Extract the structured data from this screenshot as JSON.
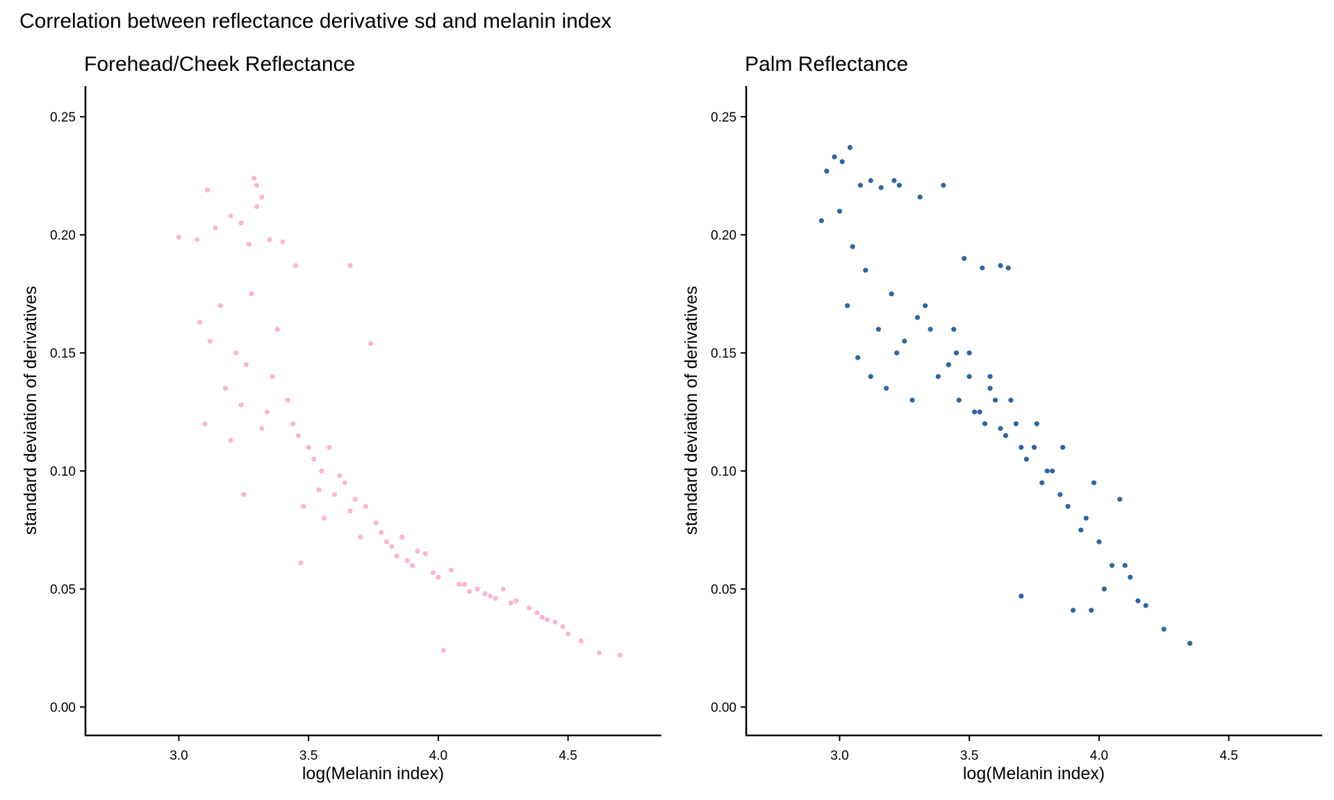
{
  "main_title": "Correlation between reflectance derivative sd and melanin index",
  "chart_data": [
    {
      "type": "scatter",
      "title": "Forehead/Cheek Reflectance",
      "xlabel": "log(Melanin index)",
      "ylabel": "standard deviation of derivatives",
      "xlim": [
        2.64,
        4.86
      ],
      "ylim": [
        -0.012,
        0.263
      ],
      "xticks": [
        3.0,
        3.5,
        4.0,
        4.5
      ],
      "yticks": [
        0.0,
        0.05,
        0.1,
        0.15,
        0.2,
        0.25
      ],
      "xtick_labels": [
        "3.0",
        "3.5",
        "4.0",
        "4.5"
      ],
      "ytick_labels": [
        "0.00",
        "0.05",
        "0.10",
        "0.15",
        "0.20",
        "0.25"
      ],
      "color": "#FFB6C8",
      "grid": false,
      "series": [
        {
          "name": "forehead_cheek",
          "x": [
            3.0,
            3.07,
            3.11,
            3.14,
            3.2,
            3.24,
            3.27,
            3.29,
            3.3,
            3.32,
            3.3,
            3.35,
            3.4,
            3.45,
            3.66,
            3.74,
            4.02,
            4.7,
            4.62,
            4.55,
            4.5,
            4.45,
            4.4,
            4.3,
            4.25,
            4.1,
            3.47,
            3.25,
            3.2,
            3.5,
            3.55,
            3.6,
            3.8,
            3.9,
            4.0,
            4.2,
            3.16,
            3.22,
            3.36,
            3.42,
            3.58,
            3.64,
            3.72,
            3.86,
            3.95,
            4.05,
            4.15,
            4.35,
            3.08,
            3.12,
            3.28,
            3.38,
            3.44,
            3.52,
            3.62,
            3.68,
            3.76,
            3.82,
            3.88,
            3.98,
            4.08,
            4.18,
            4.28,
            4.38,
            4.48,
            3.1,
            3.18,
            3.26,
            3.34,
            3.46,
            3.54,
            3.66,
            3.78,
            3.92,
            4.12,
            4.22,
            4.42,
            3.24,
            3.32,
            3.48,
            3.56,
            3.7,
            3.84
          ],
          "y": [
            0.199,
            0.198,
            0.219,
            0.203,
            0.208,
            0.205,
            0.196,
            0.224,
            0.221,
            0.216,
            0.212,
            0.198,
            0.197,
            0.187,
            0.187,
            0.154,
            0.024,
            0.022,
            0.023,
            0.028,
            0.031,
            0.036,
            0.038,
            0.045,
            0.05,
            0.052,
            0.061,
            0.09,
            0.113,
            0.11,
            0.1,
            0.09,
            0.07,
            0.06,
            0.055,
            0.047,
            0.17,
            0.15,
            0.14,
            0.13,
            0.11,
            0.095,
            0.085,
            0.072,
            0.065,
            0.058,
            0.05,
            0.042,
            0.163,
            0.155,
            0.175,
            0.16,
            0.12,
            0.105,
            0.098,
            0.088,
            0.078,
            0.068,
            0.062,
            0.057,
            0.052,
            0.048,
            0.044,
            0.04,
            0.034,
            0.12,
            0.135,
            0.145,
            0.125,
            0.115,
            0.092,
            0.083,
            0.074,
            0.066,
            0.049,
            0.046,
            0.037,
            0.128,
            0.118,
            0.085,
            0.08,
            0.072,
            0.064
          ]
        }
      ]
    },
    {
      "type": "scatter",
      "title": "Palm Reflectance",
      "xlabel": "log(Melanin index)",
      "ylabel": "standard deviation of derivatives",
      "xlim": [
        2.64,
        4.86
      ],
      "ylim": [
        -0.012,
        0.263
      ],
      "xticks": [
        3.0,
        3.5,
        4.0,
        4.5
      ],
      "yticks": [
        0.0,
        0.05,
        0.1,
        0.15,
        0.2,
        0.25
      ],
      "xtick_labels": [
        "3.0",
        "3.5",
        "4.0",
        "4.5"
      ],
      "ytick_labels": [
        "0.00",
        "0.05",
        "0.10",
        "0.15",
        "0.20",
        "0.25"
      ],
      "color": "#2E66A3",
      "grid": false,
      "series": [
        {
          "name": "palm",
          "x": [
            2.93,
            2.95,
            2.98,
            3.01,
            3.04,
            3.08,
            3.12,
            3.16,
            3.21,
            3.23,
            3.31,
            3.4,
            3.48,
            3.55,
            3.62,
            3.65,
            3.7,
            3.9,
            3.97,
            4.02,
            4.1,
            4.15,
            4.18,
            4.25,
            4.35,
            3.0,
            3.05,
            3.1,
            3.2,
            3.3,
            3.35,
            3.45,
            3.5,
            3.58,
            3.6,
            3.68,
            3.75,
            3.8,
            3.85,
            3.95,
            4.0,
            4.05,
            4.08,
            3.12,
            3.22,
            3.28,
            3.42,
            3.52,
            3.56,
            3.64,
            3.72,
            3.78,
            3.88,
            3.93,
            3.03,
            3.15,
            3.25,
            3.38,
            3.46,
            3.54,
            3.62,
            3.7,
            3.82,
            4.12,
            3.07,
            3.18,
            3.33,
            3.44,
            3.5,
            3.58,
            3.66,
            3.76,
            3.86,
            3.98
          ],
          "y": [
            0.206,
            0.227,
            0.233,
            0.231,
            0.237,
            0.221,
            0.223,
            0.22,
            0.223,
            0.221,
            0.216,
            0.221,
            0.19,
            0.186,
            0.187,
            0.186,
            0.047,
            0.041,
            0.041,
            0.05,
            0.06,
            0.045,
            0.043,
            0.033,
            0.027,
            0.21,
            0.195,
            0.185,
            0.175,
            0.165,
            0.16,
            0.15,
            0.14,
            0.135,
            0.13,
            0.12,
            0.11,
            0.1,
            0.09,
            0.08,
            0.07,
            0.06,
            0.088,
            0.14,
            0.15,
            0.13,
            0.145,
            0.125,
            0.12,
            0.115,
            0.105,
            0.095,
            0.085,
            0.075,
            0.17,
            0.16,
            0.155,
            0.14,
            0.13,
            0.125,
            0.118,
            0.11,
            0.1,
            0.055,
            0.148,
            0.135,
            0.17,
            0.16,
            0.15,
            0.14,
            0.13,
            0.12,
            0.11,
            0.095
          ]
        }
      ]
    }
  ]
}
